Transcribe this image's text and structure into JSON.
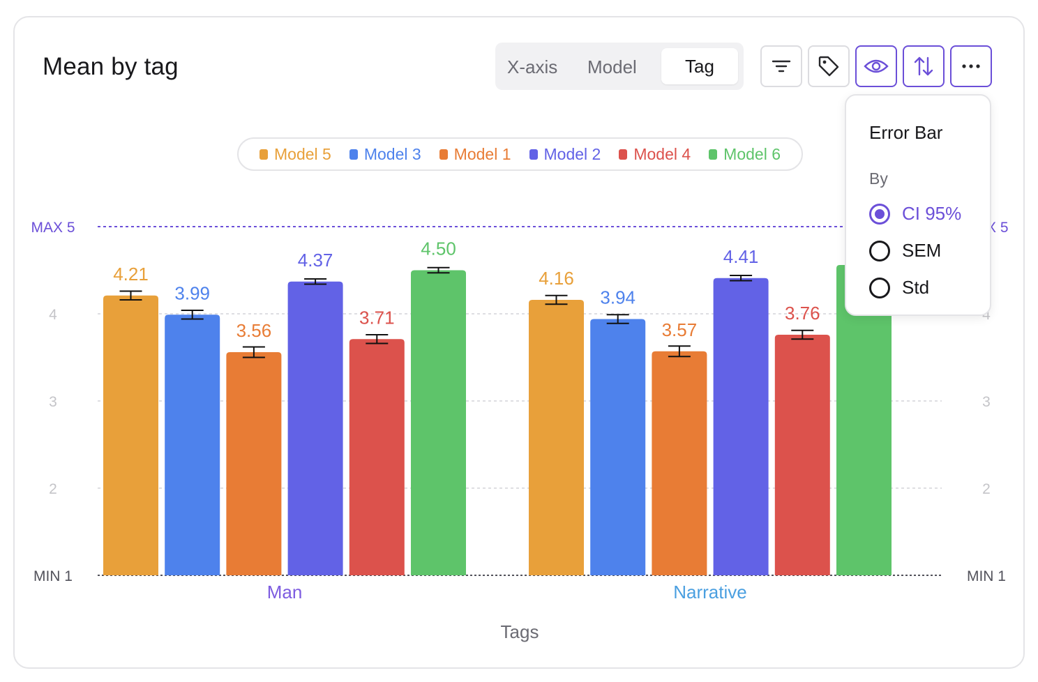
{
  "header": {
    "title": "Mean by tag",
    "xaxis_label": "X-axis",
    "xaxis_options": [
      "Model",
      "Tag"
    ],
    "xaxis_selected": "Tag"
  },
  "toolbar": {
    "buttons": [
      {
        "name": "filter-icon"
      },
      {
        "name": "tag-icon"
      },
      {
        "name": "eye-icon",
        "active": true
      },
      {
        "name": "sort-icon",
        "active": true
      },
      {
        "name": "more-icon",
        "active": true
      }
    ]
  },
  "popover": {
    "title": "Error Bar",
    "by_label": "By",
    "options": [
      "CI 95%",
      "SEM",
      "Std"
    ],
    "selected": "CI 95%",
    "accent": "#6b4fd8"
  },
  "chart_data": {
    "type": "bar",
    "categories": [
      "Man",
      "Narrative"
    ],
    "category_colors": [
      "#7d5ce0",
      "#4a9fe0"
    ],
    "xlabel": "Tags",
    "ylim": [
      1,
      5
    ],
    "yticks": [
      2,
      3,
      4
    ],
    "max_label": "MAX 5",
    "min_label": "MIN 1",
    "grid": true,
    "legend_position": "top-center",
    "series": [
      {
        "name": "Model 5",
        "color": "#e8a03a",
        "values": [
          4.21,
          4.16
        ],
        "labels": [
          "4.21",
          "4.16"
        ],
        "error": [
          0.05,
          0.05
        ]
      },
      {
        "name": "Model 3",
        "color": "#4e82ec",
        "values": [
          3.99,
          3.94
        ],
        "labels": [
          "3.99",
          "3.94"
        ],
        "error": [
          0.05,
          0.05
        ]
      },
      {
        "name": "Model 1",
        "color": "#e87c35",
        "values": [
          3.56,
          3.57
        ],
        "labels": [
          "3.56",
          "3.57"
        ],
        "error": [
          0.06,
          0.06
        ]
      },
      {
        "name": "Model 2",
        "color": "#6262e6",
        "values": [
          4.37,
          4.41
        ],
        "labels": [
          "4.37",
          "4.41"
        ],
        "error": [
          0.03,
          0.03
        ]
      },
      {
        "name": "Model 4",
        "color": "#dc524c",
        "values": [
          3.71,
          3.76
        ],
        "labels": [
          "3.71",
          "3.76"
        ],
        "error": [
          0.05,
          0.05
        ]
      },
      {
        "name": "Model 6",
        "color": "#5ec46a",
        "values": [
          4.5,
          4.56
        ],
        "labels": [
          "4.50",
          ""
        ],
        "error": [
          0.03,
          0.03
        ]
      }
    ]
  }
}
